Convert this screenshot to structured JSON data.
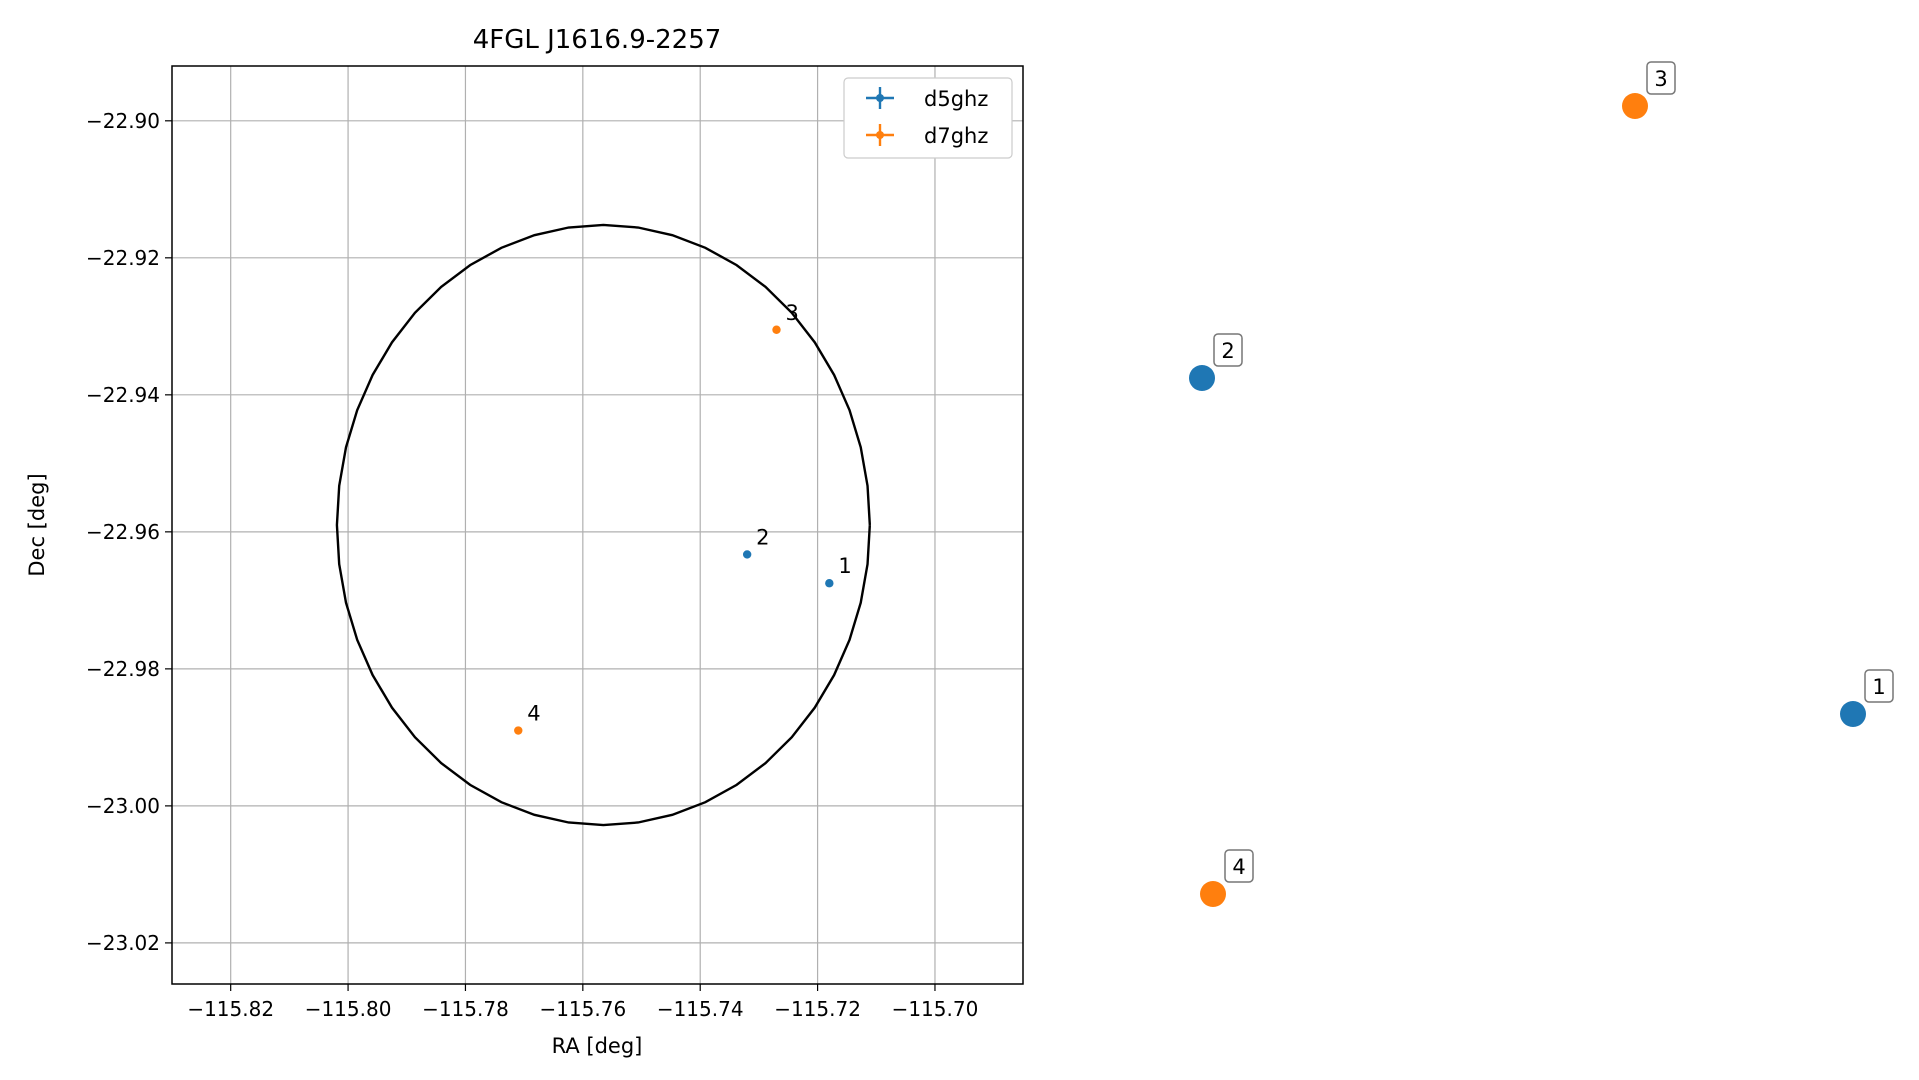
{
  "chart_data": [
    {
      "type": "scatter",
      "title": "4FGL J1616.9-2257",
      "xlabel": "RA [deg]",
      "ylabel": "Dec [deg]",
      "xlim": [
        -115.83,
        -115.685
      ],
      "ylim": [
        -23.026,
        -22.892
      ],
      "xticks": [
        -115.82,
        -115.8,
        -115.78,
        -115.76,
        -115.74,
        -115.72,
        -115.7
      ],
      "xtick_labels": [
        "−115.82",
        "−115.80",
        "−115.78",
        "−115.76",
        "−115.74",
        "−115.72",
        "−115.70"
      ],
      "yticks": [
        -22.9,
        -22.92,
        -22.94,
        -22.96,
        -22.98,
        -23.0,
        -23.02
      ],
      "ytick_labels": [
        "−22.90",
        "−22.92",
        "−22.94",
        "−22.96",
        "−22.98",
        "−23.00",
        "−23.02"
      ],
      "grid": true,
      "legend_position": "top-right",
      "series": [
        {
          "name": "d5ghz",
          "color": "#1f77b4",
          "points": [
            {
              "label": "1",
              "x": -115.718,
              "y": -22.9675
            },
            {
              "label": "2",
              "x": -115.732,
              "y": -22.9633
            }
          ]
        },
        {
          "name": "d7ghz",
          "color": "#ff7f0e",
          "points": [
            {
              "label": "3",
              "x": -115.727,
              "y": -22.9305
            },
            {
              "label": "4",
              "x": -115.771,
              "y": -22.989
            }
          ]
        }
      ],
      "ellipse": {
        "center_x": -115.7565,
        "center_y": -22.959,
        "semi_major_y": 0.0438,
        "semi_major_x": 0.0454,
        "color": "#000000"
      }
    },
    {
      "type": "scatter",
      "points": [
        {
          "label": "1",
          "color": "#1f77b4"
        },
        {
          "label": "2",
          "color": "#1f77b4"
        },
        {
          "label": "3",
          "color": "#ff7f0e"
        },
        {
          "label": "4",
          "color": "#ff7f0e"
        }
      ]
    }
  ]
}
